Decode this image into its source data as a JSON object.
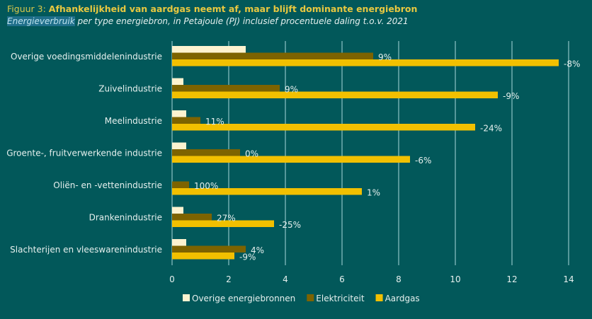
{
  "header": {
    "figure_prefix": "Figuur 3: ",
    "title": "Afhankelijkheid van aardgas neemt af, maar blijft dominante energiebron",
    "subtitle_highlight": "Energieverbruik",
    "subtitle_rest": " per type energiebron, in Petajoule (PJ) inclusief procentuele daling t.o.v. 2021"
  },
  "chart_data": {
    "type": "bar",
    "orientation": "horizontal",
    "title": "Afhankelijkheid van aardgas neemt af, maar blijft dominante energiebron",
    "subtitle": "Energieverbruik per type energiebron, in Petajoule (PJ) inclusief procentuele daling t.o.v. 2021",
    "xlabel": "",
    "ylabel": "",
    "xlim": [
      0,
      14
    ],
    "xticks": [
      0,
      2,
      4,
      6,
      8,
      10,
      12,
      14
    ],
    "grid": true,
    "legend_position": "bottom",
    "categories": [
      "Overige voedingsmiddelenindustrie",
      "Zuivelindustrie",
      "Meelindustrie",
      "Groente-, fruitverwerkende industrie",
      "Oliën- en -vettenindustrie",
      "Drankenindustrie",
      "Slachterijen en vleeswarenindustrie"
    ],
    "series": [
      {
        "name": "Overige energiebronnen",
        "color": "#fdf3d0",
        "values": [
          2.6,
          0.4,
          0.5,
          0.5,
          0.0,
          0.4,
          0.5
        ],
        "labels": [
          "",
          "",
          "",
          "",
          "",
          "",
          ""
        ]
      },
      {
        "name": "Elektriciteit",
        "color": "#7d6300",
        "values": [
          7.1,
          3.8,
          1.0,
          2.4,
          0.6,
          1.4,
          2.6
        ],
        "labels": [
          "9%",
          "9%",
          "11%",
          "0%",
          "100%",
          "27%",
          "4%"
        ]
      },
      {
        "name": "Aardgas",
        "color": "#f2c000",
        "values": [
          13.65,
          11.5,
          10.7,
          8.4,
          6.7,
          3.6,
          2.2
        ],
        "labels": [
          "-8%",
          "-9%",
          "-24%",
          "-6%",
          "1%",
          "-25%",
          "-9%"
        ]
      }
    ]
  },
  "colors": {
    "background": "#02585a",
    "grid": "#8fc2c6",
    "text": "#e6f0ee"
  }
}
